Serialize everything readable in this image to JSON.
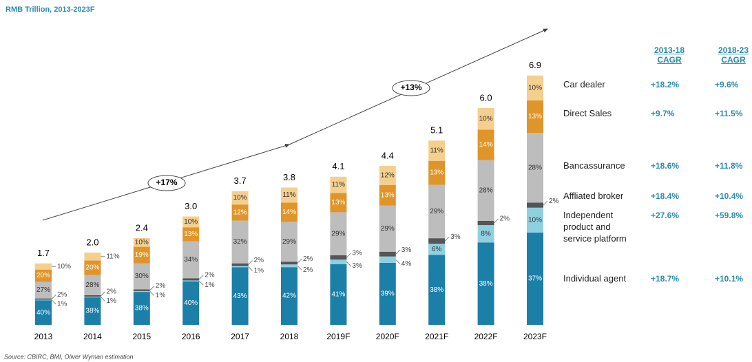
{
  "chart_data": {
    "type": "bar",
    "subtitle": "RMB Trillion, 2013-2023F",
    "source": "Source: CBIRC, BMI, Oliver Wyman estimation",
    "categories": [
      "2013",
      "2014",
      "2015",
      "2016",
      "2017",
      "2018",
      "2019F",
      "2020F",
      "2021F",
      "2022F",
      "2023F"
    ],
    "totals": [
      1.7,
      2.0,
      2.4,
      3.0,
      3.7,
      3.8,
      4.1,
      4.4,
      5.1,
      6.0,
      6.9
    ],
    "total_labels": [
      "1.7",
      "2.0",
      "2.4",
      "3.0",
      "3.7",
      "3.8",
      "4.1",
      "4.4",
      "5.1",
      "6.0",
      "6.9"
    ],
    "annotations": [
      "+17%",
      "+13%"
    ],
    "cagr_headers": [
      "2013-18 CAGR",
      "2018-23 CAGR"
    ],
    "series": [
      {
        "name": "Individual agent",
        "color": "#1b7fa8",
        "cagr": [
          "+18.7%",
          "+10.1%"
        ],
        "values": [
          40,
          38,
          38,
          40,
          43,
          42,
          41,
          39,
          38,
          38,
          37
        ],
        "value_labels": [
          "40%",
          "38%",
          "38%",
          "40%",
          "43%",
          "42%",
          "41%",
          "39%",
          "38%",
          "38%",
          "37%"
        ]
      },
      {
        "name": "Independent product and service platform",
        "color": "#8fd0e0",
        "cagr": [
          "+27.6%",
          "+59.8%"
        ],
        "values": [
          1,
          1,
          1,
          1,
          1,
          2,
          3,
          4,
          6,
          8,
          10
        ],
        "value_labels": [
          "1%",
          "1%",
          "1%",
          "1%",
          "1%",
          "2%",
          "3%",
          "4%",
          "6%",
          "8%",
          "10%"
        ]
      },
      {
        "name": "Affliated broker",
        "color": "#555555",
        "cagr": [
          "+18.4%",
          "+10.4%"
        ],
        "values": [
          2,
          2,
          2,
          2,
          2,
          2,
          3,
          3,
          3,
          2,
          2
        ],
        "value_labels": [
          "2%",
          "2%",
          "2%",
          "2%",
          "2%",
          "2%",
          "3%",
          "3%",
          "3%",
          "2%",
          "2%"
        ]
      },
      {
        "name": "Bancassurance",
        "color": "#bdbdbd",
        "cagr": [
          "+18.6%",
          "+11.8%"
        ],
        "values": [
          27,
          28,
          30,
          34,
          32,
          29,
          29,
          29,
          29,
          28,
          28
        ],
        "value_labels": [
          "27%",
          "28%",
          "30%",
          "34%",
          "32%",
          "29%",
          "29%",
          "29%",
          "29%",
          "28%",
          "28%"
        ]
      },
      {
        "name": "Direct Sales",
        "color": "#e0952a",
        "cagr": [
          "+9.7%",
          "+11.5%"
        ],
        "values": [
          20,
          20,
          19,
          13,
          12,
          14,
          13,
          13,
          13,
          14,
          13
        ],
        "value_labels": [
          "20%",
          "20%",
          "19%",
          "13%",
          "12%",
          "14%",
          "13%",
          "13%",
          "13%",
          "14%",
          "13%"
        ]
      },
      {
        "name": "Car dealer",
        "color": "#f5cf8e",
        "cagr": [
          "+18.2%",
          "+9.6%"
        ],
        "values": [
          10,
          11,
          10,
          10,
          10,
          11,
          11,
          12,
          11,
          10,
          10
        ],
        "value_labels": [
          "10%",
          "11%",
          "10%",
          "10%",
          "10%",
          "11%",
          "11%",
          "12%",
          "11%",
          "10%",
          "10%"
        ]
      }
    ]
  }
}
